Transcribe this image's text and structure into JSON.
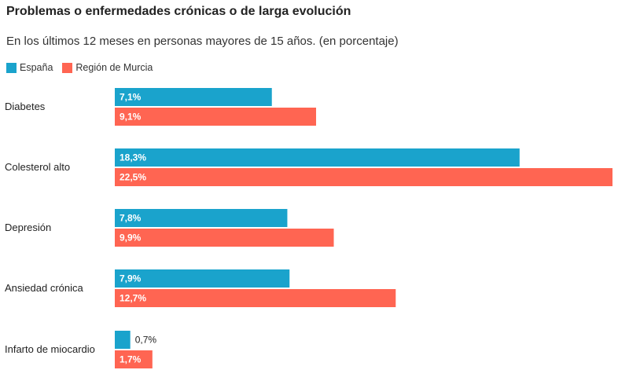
{
  "chart_data": {
    "type": "bar",
    "orientation": "horizontal",
    "title": "Problemas o enfermedades crónicas o de larga evolución",
    "subtitle": "En los últimos 12 meses en personas mayores de 15 años. (en porcentaje)",
    "categories": [
      "Diabetes",
      "Colesterol alto",
      "Depresión",
      "Ansiedad crónica",
      "Infarto de miocardio"
    ],
    "series": [
      {
        "name": "España",
        "color": "#1aa3cc",
        "values": [
          7.1,
          18.3,
          7.8,
          7.9,
          0.7
        ],
        "labels": [
          "7,1%",
          "18,3%",
          "7,8%",
          "7,9%",
          "0,7%"
        ]
      },
      {
        "name": "Región de Murcia",
        "color": "#ff6552",
        "values": [
          9.1,
          22.5,
          9.9,
          12.7,
          1.7
        ],
        "labels": [
          "9,1%",
          "22,5%",
          "9,9%",
          "12,7%",
          "1,7%"
        ]
      }
    ],
    "xlim": [
      0,
      22.5
    ],
    "grid": false,
    "legend": "top-left"
  }
}
